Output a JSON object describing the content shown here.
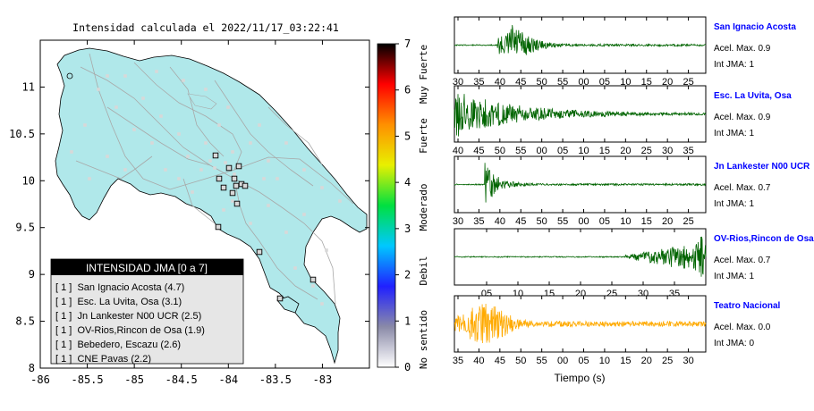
{
  "map": {
    "title": "Intensidad calculada el 2022/11/17_03:22:41",
    "x_ticks": [
      "-86",
      "-85.5",
      "-85",
      "-84.5",
      "-84",
      "-83.5",
      "-83"
    ],
    "y_ticks": [
      "11",
      "10.5",
      "10",
      "9.5",
      "9",
      "8.5",
      "8"
    ],
    "xlim": [
      -86,
      -82.5
    ],
    "ylim": [
      8,
      11.5
    ],
    "land_color": "#b0e8ea",
    "station_marker_color": "#d8d8d8",
    "legend": {
      "title": "INTENSIDAD JMA [0 a 7]",
      "entries": [
        "[ 1 ]  San Ignacio Acosta (4.7)",
        "[ 1 ]  Esc. La Uvita, Osa (3.1)",
        "[ 1 ]  Jn Lankester N00 UCR (2.5)",
        "[ 1 ]  OV-Rios,Rincon de Osa (1.9)",
        "[ 1 ]  Bebedero, Escazu (2.6)",
        "[ 1 ]  CNE Pavas (2.2)"
      ]
    }
  },
  "colorbar": {
    "ticks": [
      "7",
      "6",
      "5",
      "4",
      "3",
      "2",
      "1",
      "0"
    ],
    "labels": [
      "Muy Fuerte",
      "Fuerte",
      "Moderado",
      "Debil",
      "No sentido"
    ],
    "stops": [
      "#ffffff",
      "#8a8aa8",
      "#2020ff",
      "#00c8ff",
      "#00e040",
      "#e8f000",
      "#ff9000",
      "#ff0000",
      "#000000"
    ]
  },
  "chart_data": {
    "type": "line",
    "xlabel": "Tiempo (s)",
    "series": [
      {
        "name": "San Ignacio Acosta",
        "acel": "Acel. Max. 0.9",
        "jma": "Int JMA: 1",
        "ticks": [
          "30",
          "35",
          "40",
          "45",
          "50",
          "55",
          "00",
          "05",
          "10",
          "15",
          "20",
          "25"
        ],
        "color": "#006400",
        "shape": "peak",
        "onset": 0.19
      },
      {
        "name": "Esc. La Uvita, Osa",
        "acel": "Acel. Max. 0.9",
        "jma": "Int JMA: 1",
        "ticks": [
          "40",
          "45",
          "50",
          "55",
          "00",
          "05",
          "10",
          "15",
          "20",
          "25",
          "30",
          "35"
        ],
        "color": "#006400",
        "shape": "early",
        "onset": 0.0
      },
      {
        "name": "Jn Lankester N00 UCR",
        "acel": "Acel. Max. 0.7",
        "jma": "Int JMA: 1",
        "ticks": [
          "30",
          "35",
          "40",
          "45",
          "50",
          "55",
          "00",
          "05",
          "10",
          "15",
          "20",
          "25"
        ],
        "color": "#006400",
        "shape": "spike",
        "onset": 0.12
      },
      {
        "name": "OV-Rios,Rincon de Osa",
        "acel": "Acel. Max. 0.7",
        "jma": "Int JMA: 1",
        "ticks": [
          "05",
          "10",
          "15",
          "20",
          "25",
          "30",
          "35"
        ],
        "color": "#006400",
        "shape": "late",
        "onset": 0.68
      },
      {
        "name": "Teatro Nacional",
        "acel": "Acel. Max. 0.0",
        "jma": "Int JMA: 0",
        "ticks": [
          "35",
          "40",
          "45",
          "50",
          "55",
          "00",
          "05",
          "10",
          "15",
          "20",
          "25",
          "30"
        ],
        "color": "#ffaa00",
        "shape": "noise",
        "onset": 0.05
      }
    ]
  }
}
